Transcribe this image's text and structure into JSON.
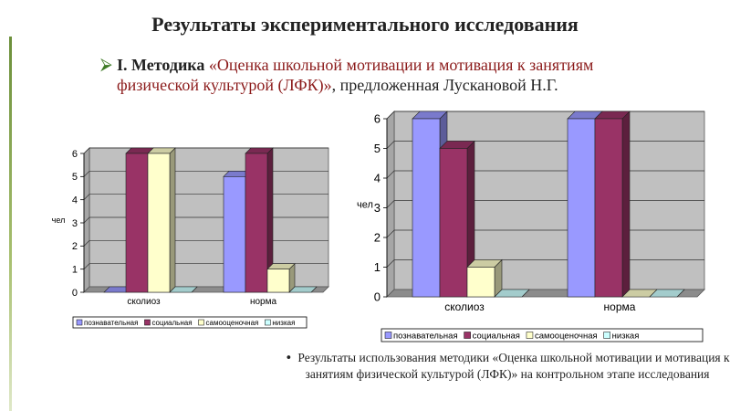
{
  "slide": {
    "title": "Результаты экспериментального исследования",
    "method_lead": "I. Методика ",
    "method_quote": "«Оценка школьной мотивации и мотивация к занятиям физической культурой (ЛФК)»",
    "method_rest": ", предложенная Лускановой Н.Г.",
    "note": "Результаты использования методики «Оценка школьной мотивации и мотивация к занятиям физической культурой (ЛФК)» на контрольном этапе исследования"
  },
  "colors": {
    "background": "#ffffff",
    "accent_green": "#3e7a26",
    "quote_red": "#8b1a1a",
    "plot_bg": "#c0c0c0"
  },
  "chart_data": [
    {
      "type": "bar",
      "title": "",
      "xlabel": "",
      "ylabel": "чел",
      "categories": [
        "сколиоз",
        "норма"
      ],
      "ylim": [
        0,
        6
      ],
      "yticks": [
        0,
        1,
        2,
        3,
        4,
        5,
        6
      ],
      "grid": true,
      "legend": "bottom",
      "series": [
        {
          "name": "познавательная",
          "color": "#9999ff",
          "values": [
            0,
            5
          ]
        },
        {
          "name": "социальная",
          "color": "#993366",
          "values": [
            6,
            6
          ]
        },
        {
          "name": "самооценочная",
          "color": "#ffffcc",
          "values": [
            6,
            1
          ]
        },
        {
          "name": "низкая",
          "color": "#ccffff",
          "values": [
            0,
            0
          ]
        }
      ]
    },
    {
      "type": "bar",
      "title": "",
      "xlabel": "",
      "ylabel": "чел",
      "categories": [
        "сколиоз",
        "норма"
      ],
      "ylim": [
        0,
        6
      ],
      "yticks": [
        0,
        1,
        2,
        3,
        4,
        5,
        6
      ],
      "grid": true,
      "legend": "bottom",
      "series": [
        {
          "name": "познавательная",
          "color": "#9999ff",
          "values": [
            6,
            6
          ]
        },
        {
          "name": "социальная",
          "color": "#993366",
          "values": [
            5,
            6
          ]
        },
        {
          "name": "самооценочная",
          "color": "#ffffcc",
          "values": [
            1,
            0
          ]
        },
        {
          "name": "низкая",
          "color": "#ccffff",
          "values": [
            0,
            0
          ]
        }
      ]
    }
  ]
}
